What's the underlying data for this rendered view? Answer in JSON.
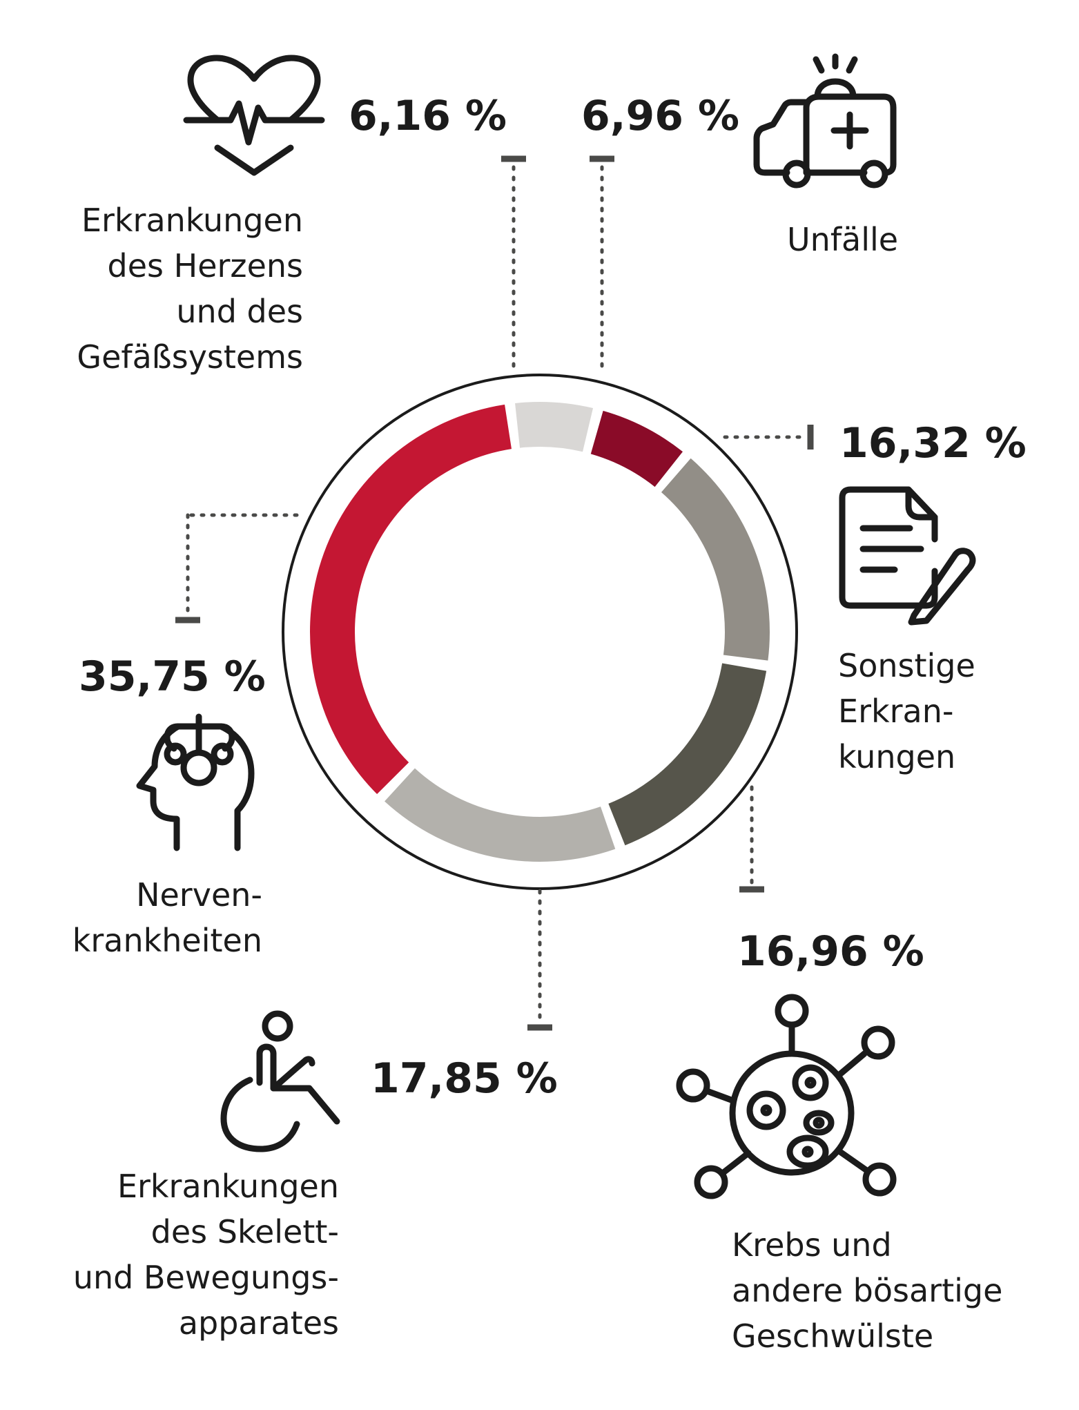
{
  "chart_data": {
    "type": "pie",
    "variant": "donut",
    "unit": "%",
    "slices": [
      {
        "key": "herz",
        "label_lines": [
          "Erkrankungen",
          "des Herzens",
          "und des",
          "Gefäßsystems"
        ],
        "value": 6.16,
        "value_text": "6,16 %",
        "color": "#d9d7d5",
        "icon": "heart-pulse-icon"
      },
      {
        "key": "unfaelle",
        "label_lines": [
          "Unfälle"
        ],
        "value": 6.96,
        "value_text": "6,96 %",
        "color": "#8a0b28",
        "icon": "ambulance-icon"
      },
      {
        "key": "sonstige",
        "label_lines": [
          "Sonstige",
          "Erkran-",
          "kungen"
        ],
        "value": 16.32,
        "value_text": "16,32 %",
        "color": "#928e87",
        "icon": "document-pen-icon"
      },
      {
        "key": "krebs",
        "label_lines": [
          "Krebs und",
          "andere bösartige",
          "Geschwülste"
        ],
        "value": 16.96,
        "value_text": "16,96 %",
        "color": "#56554b",
        "icon": "virus-cell-icon"
      },
      {
        "key": "skelett",
        "label_lines": [
          "Erkrankungen",
          "des Skelett-",
          "und Bewegungs-",
          "apparates"
        ],
        "value": 17.85,
        "value_text": "17,85 %",
        "color": "#b3b1ac",
        "icon": "wheelchair-icon"
      },
      {
        "key": "nerven",
        "label_lines": [
          "Nerven-",
          "krankheiten"
        ],
        "value": 35.75,
        "value_text": "35,75 %",
        "color": "#c41733",
        "icon": "head-neural-icon"
      }
    ]
  }
}
